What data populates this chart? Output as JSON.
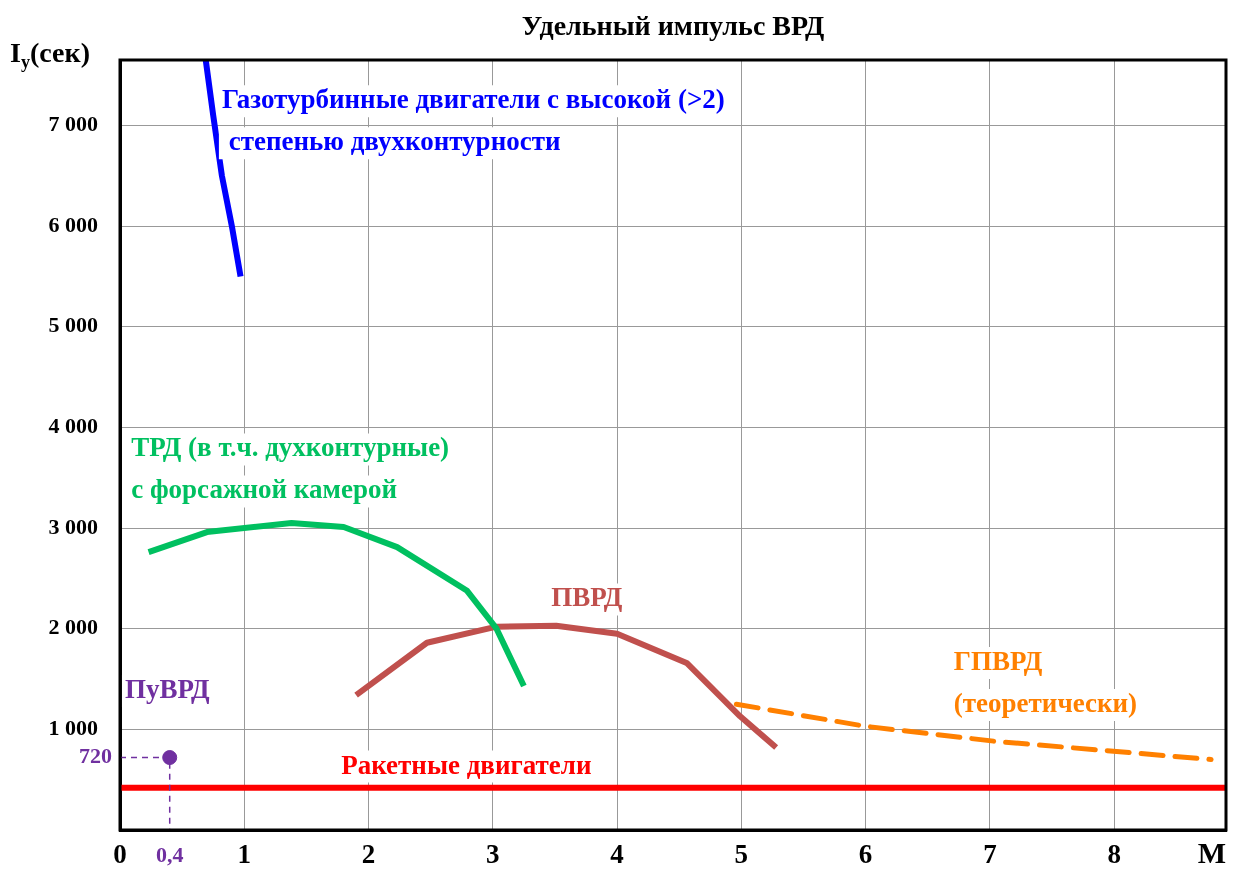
{
  "chart_data": {
    "type": "line",
    "title": "Удельный импульс ВРД",
    "xlabel": "M",
    "ylabel": "I$_{у}$(сек)",
    "xlim": [
      0,
      8.9
    ],
    "ylim": [
      0,
      7650
    ],
    "xticks": [
      0,
      1,
      2,
      3,
      4,
      5,
      6,
      7,
      8
    ],
    "yticks": [
      {
        "value": 1000,
        "label": "1 000"
      },
      {
        "value": 2000,
        "label": "2 000"
      },
      {
        "value": 3000,
        "label": "3 000"
      },
      {
        "value": 4000,
        "label": "4 000"
      },
      {
        "value": 5000,
        "label": "5 000"
      },
      {
        "value": 6000,
        "label": "6 000"
      },
      {
        "value": 7000,
        "label": "7 000"
      }
    ],
    "grid": true,
    "legend": false,
    "marker": "none",
    "line_style": "solid",
    "series": [
      {
        "name": "Газотурбинные двигатели с высокой (>2)\n степенью двухконтурности",
        "color": "#0000ff",
        "type": "line",
        "x": [
          0.69,
          0.75,
          0.82,
          0.9,
          0.97
        ],
        "values": [
          7650,
          7100,
          6500,
          6000,
          5500
        ]
      },
      {
        "name": "ТРД (в т.ч. духконтурные)\nс форсажной камерой",
        "color": "#00c060",
        "type": "line",
        "x": [
          0.23,
          0.7,
          1.38,
          1.8,
          2.23,
          2.79,
          3.03,
          3.25
        ],
        "values": [
          2760,
          2960,
          3050,
          3010,
          2810,
          2380,
          2000,
          1430
        ]
      },
      {
        "name": "ПВРД",
        "color": "#c0504d",
        "type": "line",
        "x": [
          1.9,
          2.47,
          3.03,
          3.51,
          4.0,
          4.56,
          4.99,
          5.28
        ],
        "values": [
          1340,
          1860,
          2020,
          2030,
          1950,
          1660,
          1130,
          820
        ]
      },
      {
        "name": "ГПВРД\n(теоретически)",
        "color": "#ff8000",
        "type": "line",
        "line_style": "dashed",
        "x": [
          4.96,
          6.0,
          7.05,
          8.02,
          8.78
        ],
        "values": [
          1250,
          1030,
          880,
          780,
          700
        ]
      },
      {
        "name": "Ракетные двигатели",
        "color": "#ff0000",
        "type": "line",
        "x": [
          0,
          8.9
        ],
        "values": [
          420,
          420
        ]
      },
      {
        "name": "ПуВРД",
        "color": "#7030a0",
        "type": "scatter",
        "marker": "circle",
        "x": [
          0.4
        ],
        "values": [
          720
        ]
      },
      {
        "color": "#7030a0",
        "type": "line",
        "line_style": "dotted",
        "x": [
          0,
          0.4,
          0.4
        ],
        "values": [
          720,
          720,
          0
        ]
      }
    ],
    "annotations": [
      {
        "text": "720",
        "x": 0,
        "y": 720
      },
      {
        "text": "0,4",
        "x": 0.4,
        "y": 0
      }
    ]
  }
}
